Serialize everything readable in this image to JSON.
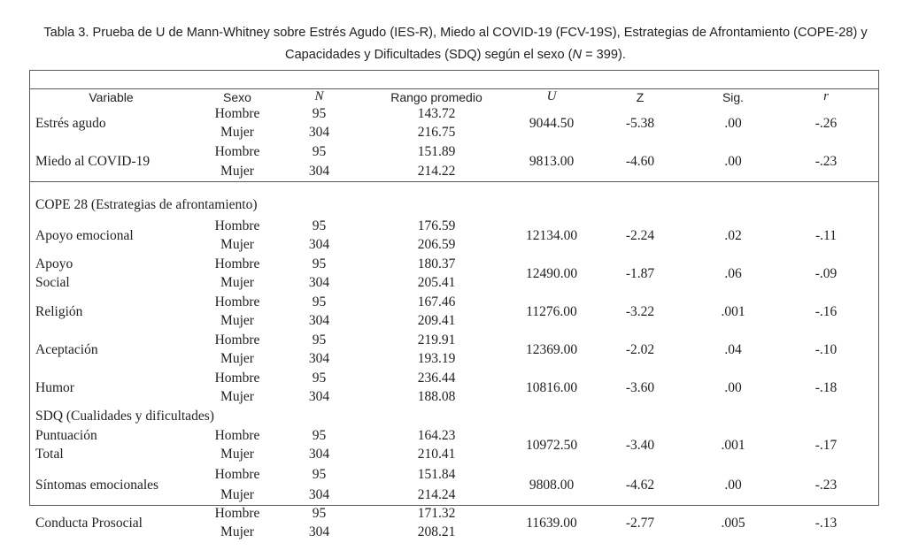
{
  "page": {
    "background": "#ffffff",
    "text_color": "#1f1f1f",
    "border_color": "#5a5a5a"
  },
  "title": {
    "line1": "Tabla 3. Prueba de U de Mann-Whitney sobre Estrés Agudo (IES-R), Miedo al COVID-19 (FCV-19S), Estrategias de Afrontamiento (COPE-28) y",
    "line2_pre": "Capacidades y Dificultades (SDQ) según el sexo (",
    "line2_italic": "N",
    "line2_post": " = 399)."
  },
  "table": {
    "headers": {
      "variable": "Variable",
      "sexo": "Sexo",
      "n": "N",
      "rango": "Rango promedio",
      "u": "U",
      "z": "Z",
      "sig": "Sig.",
      "r": "r"
    },
    "sections": {
      "cope": "COPE 28 (Estrategias de afrontamiento)",
      "sdq": "SDQ (Cualidades y dificultades)"
    },
    "rows": [
      {
        "variable": "Estrés agudo",
        "sexo1": "Hombre",
        "sexo2": "Mujer",
        "n1": "95",
        "n2": "304",
        "rango1": "143.72",
        "rango2": "216.75",
        "u": "9044.50",
        "z": "-5.38",
        "sig": ".00",
        "r": "-.26"
      },
      {
        "variable": "Miedo al COVID-19",
        "sexo1": "Hombre",
        "sexo2": "Mujer",
        "n1": "95",
        "n2": "304",
        "rango1": "151.89",
        "rango2": "214.22",
        "u": "9813.00",
        "z": "-4.60",
        "sig": ".00",
        "r": "-.23"
      },
      {
        "variable": "Apoyo emocional",
        "sexo1": "Hombre",
        "sexo2": "Mujer",
        "n1": "95",
        "n2": "304",
        "rango1": "176.59",
        "rango2": "206.59",
        "u": "12134.00",
        "z": "-2.24",
        "sig": ".02",
        "r": "-.11"
      },
      {
        "variable_line1": "Apoyo",
        "variable_line2": "Social",
        "sexo1": "Hombre",
        "sexo2": "Mujer",
        "n1": "95",
        "n2": "304",
        "rango1": "180.37",
        "rango2": "205.41",
        "u": "12490.00",
        "z": "-1.87",
        "sig": ".06",
        "r": "-.09"
      },
      {
        "variable": "Religión",
        "sexo1": "Hombre",
        "sexo2": "Mujer",
        "n1": "95",
        "n2": "304",
        "rango1": "167.46",
        "rango2": "209.41",
        "u": "11276.00",
        "z": "-3.22",
        "sig": ".001",
        "r": "-.16"
      },
      {
        "variable": "Aceptación",
        "sexo1": "Hombre",
        "sexo2": "Mujer",
        "n1": "95",
        "n2": "304",
        "rango1": "219.91",
        "rango2": "193.19",
        "u": "12369.00",
        "z": "-2.02",
        "sig": ".04",
        "r": "-.10"
      },
      {
        "variable": "Humor",
        "sexo1": "Hombre",
        "sexo2": "Mujer",
        "n1": "95",
        "n2": "304",
        "rango1": "236.44",
        "rango2": "188.08",
        "u": "10816.00",
        "z": "-3.60",
        "sig": ".00",
        "r": "-.18"
      },
      {
        "variable_line1": "Puntuación",
        "variable_line2": "Total",
        "sexo1": "Hombre",
        "sexo2": "Mujer",
        "n1": "95",
        "n2": "304",
        "rango1": "164.23",
        "rango2": "210.41",
        "u": "10972.50",
        "z": "-3.40",
        "sig": ".001",
        "r": "-.17"
      },
      {
        "variable": "Síntomas emocionales",
        "sexo1": "Hombre",
        "sexo2": "Mujer",
        "n1": "95",
        "n2": "304",
        "rango1": "151.84",
        "rango2": "214.24",
        "u": "9808.00",
        "z": "-4.62",
        "sig": ".00",
        "r": "-.23"
      },
      {
        "variable": "Conducta Prosocial",
        "sexo1": "Hombre",
        "sexo2": "Mujer",
        "n1": "95",
        "n2": "304",
        "rango1": "171.32",
        "rango2": "208.21",
        "u": "11639.00",
        "z": "-2.77",
        "sig": ".005",
        "r": "-.13"
      }
    ]
  }
}
